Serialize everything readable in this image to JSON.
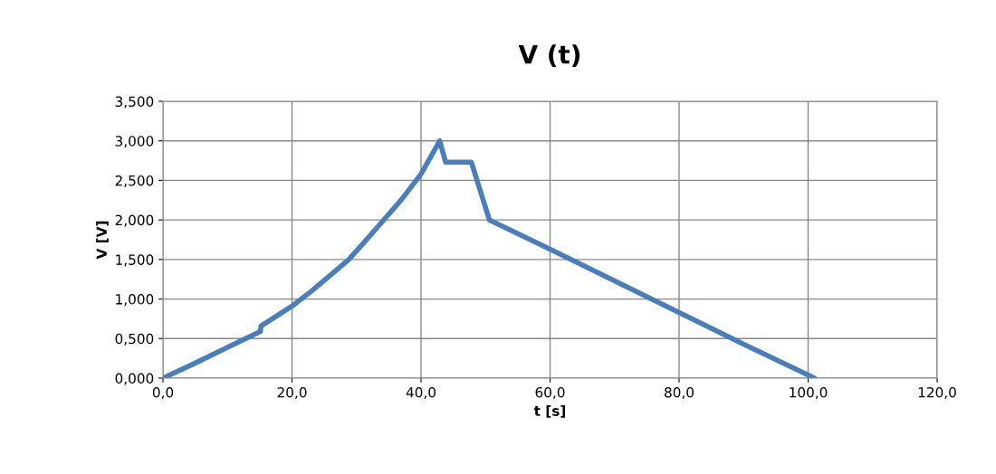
{
  "chart_data": {
    "type": "line",
    "title": "V (t)",
    "xlabel": "t [s]",
    "ylabel": "V [V]",
    "series": [
      {
        "color": "#4a7ebb",
        "x": [
          0,
          5,
          10,
          15.1,
          15.2,
          20,
          23,
          26.5,
          28.8,
          31,
          33.9,
          37,
          40,
          42.9,
          43.8,
          47.8,
          50.6,
          60,
          70,
          80,
          90,
          101
        ],
        "values": [
          0,
          0.19,
          0.39,
          0.59,
          0.66,
          0.91,
          1.1,
          1.34,
          1.5,
          1.7,
          1.97,
          2.26,
          2.58,
          3.0,
          2.73,
          2.73,
          2.0,
          1.63,
          1.23,
          0.83,
          0.43,
          0
        ]
      }
    ],
    "xlim": [
      0,
      120
    ],
    "ylim": [
      0,
      3.5
    ],
    "xticks": [
      {
        "value": 0,
        "label": "0,0"
      },
      {
        "value": 20,
        "label": "20,0"
      },
      {
        "value": 40,
        "label": "40,0"
      },
      {
        "value": 60,
        "label": "60,0"
      },
      {
        "value": 80,
        "label": "80,0"
      },
      {
        "value": 100,
        "label": "100,0"
      },
      {
        "value": 120,
        "label": "120,0"
      }
    ],
    "yticks": [
      {
        "value": 0,
        "label": "0,000"
      },
      {
        "value": 0.5,
        "label": "0,500"
      },
      {
        "value": 1,
        "label": "1,000"
      },
      {
        "value": 1.5,
        "label": "1,500"
      },
      {
        "value": 2,
        "label": "2,000"
      },
      {
        "value": 2.5,
        "label": "2,500"
      },
      {
        "value": 3,
        "label": "3,000"
      },
      {
        "value": 3.5,
        "label": "3,500"
      }
    ],
    "grid": true,
    "legend": false,
    "line_style": "solid"
  }
}
